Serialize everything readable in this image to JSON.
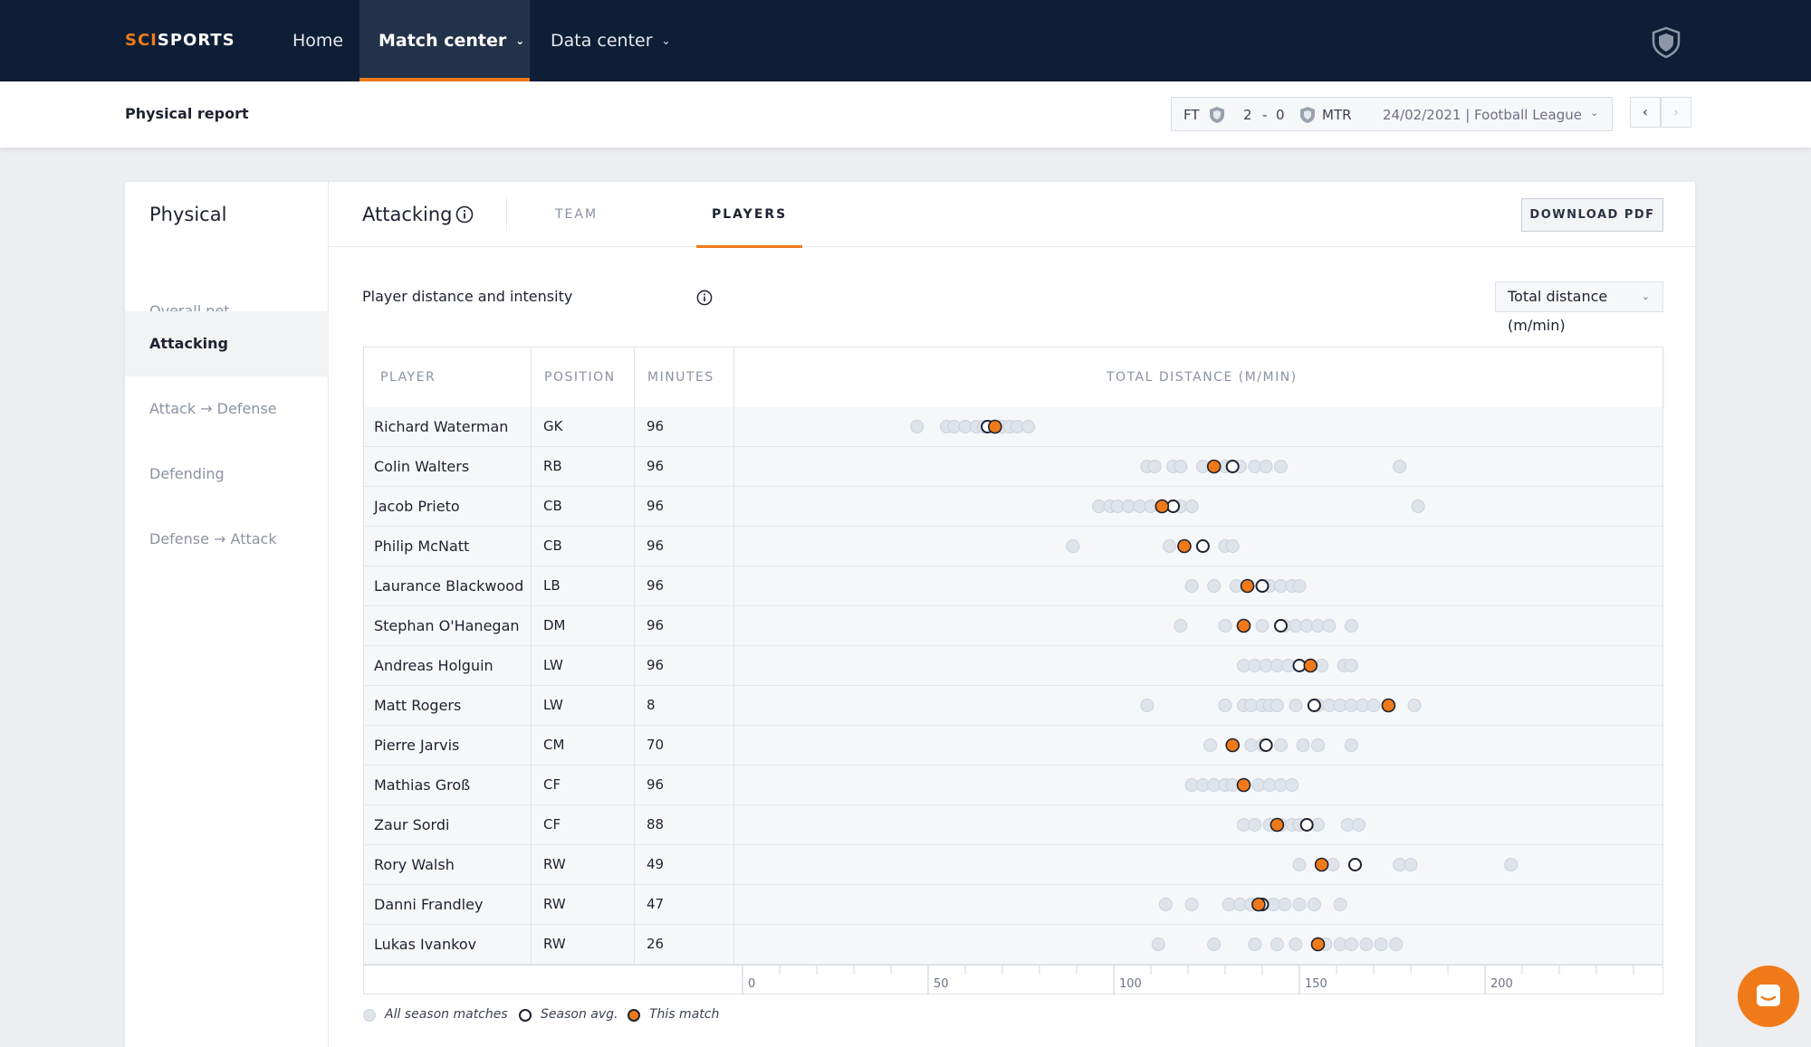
{
  "app": {
    "logo_a": "SCI",
    "logo_b": "SPORTS"
  },
  "nav": {
    "home": "Home",
    "match_center": "Match center",
    "data_center": "Data center"
  },
  "header": {
    "page_title": "Physical report",
    "match": {
      "status": "FT",
      "score_home": "2",
      "score_sep": "-",
      "score_away": "0",
      "away_team": "MTR",
      "meta": "24/02/2021 | Football League"
    }
  },
  "sidebar": {
    "title": "Physical",
    "items": [
      "Overall net",
      "Attacking",
      "Attack → Defense",
      "Defending",
      "Defense → Attack"
    ],
    "active_index": 1
  },
  "tabs": {
    "section_title": "Attacking",
    "team": "TEAM",
    "players": "PLAYERS",
    "download": "DOWNLOAD PDF"
  },
  "panel": {
    "subtitle": "Player distance and intensity",
    "metric": "Total distance (m/min)"
  },
  "table": {
    "headers": {
      "player": "PLAYER",
      "position": "POSITION",
      "minutes": "MINUTES",
      "chart": "TOTAL DISTANCE (M/MIN)"
    },
    "rows": [
      {
        "player": "Richard Waterman",
        "position": "GK",
        "minutes": "96"
      },
      {
        "player": "Colin Walters",
        "position": "RB",
        "minutes": "96"
      },
      {
        "player": "Jacob Prieto",
        "position": "CB",
        "minutes": "96"
      },
      {
        "player": "Philip McNatt",
        "position": "CB",
        "minutes": "96"
      },
      {
        "player": "Laurance Blackwood",
        "position": "LB",
        "minutes": "96"
      },
      {
        "player": "Stephan O'Hanegan",
        "position": "DM",
        "minutes": "96"
      },
      {
        "player": "Andreas Holguin",
        "position": "LW",
        "minutes": "96"
      },
      {
        "player": "Matt Rogers",
        "position": "LW",
        "minutes": "8"
      },
      {
        "player": "Pierre Jarvis",
        "position": "CM",
        "minutes": "70"
      },
      {
        "player": "Mathias Groß",
        "position": "CF",
        "minutes": "96"
      },
      {
        "player": "Zaur Sordi",
        "position": "CF",
        "minutes": "88"
      },
      {
        "player": "Rory Walsh",
        "position": "RW",
        "minutes": "49"
      },
      {
        "player": "Danni Frandley",
        "position": "RW",
        "minutes": "47"
      },
      {
        "player": "Lukas Ivankov",
        "position": "RW",
        "minutes": "26"
      }
    ]
  },
  "legend": {
    "all": "All season matches",
    "avg": "Season avg.",
    "match": "This match"
  },
  "colors": {
    "accent": "#f07a1a",
    "navy": "#0e1e36",
    "dot": "#dfe3ea"
  },
  "chart_data": {
    "type": "scatter",
    "ylabel": "TOTAL DISTANCE (M/MIN)",
    "xlim": [
      0,
      250
    ],
    "xticks": [
      0,
      50,
      100,
      150,
      200
    ],
    "tick_labels": [
      "0",
      "50",
      "100",
      "150",
      "200"
    ],
    "series": [
      {
        "player": "Richard Waterman",
        "season": [
          47,
          55,
          57,
          60,
          63,
          65,
          67,
          70,
          72,
          74,
          77
        ],
        "avg": 66,
        "match": 68
      },
      {
        "player": "Colin Walters",
        "season": [
          109,
          111,
          116,
          118,
          124,
          130,
          132,
          134,
          138,
          141,
          145,
          177
        ],
        "avg": 132,
        "match": 127
      },
      {
        "player": "Jacob Prieto",
        "season": [
          96,
          99,
          101,
          104,
          107,
          110,
          116,
          118,
          121,
          182
        ],
        "avg": 116,
        "match": 113
      },
      {
        "player": "Philip McNatt",
        "season": [
          89,
          115,
          124,
          130,
          132
        ],
        "avg": 124,
        "match": 119
      },
      {
        "player": "Laurance Blackwood",
        "season": [
          121,
          127,
          133,
          136,
          140,
          142,
          145,
          148,
          150
        ],
        "avg": 140,
        "match": 136
      },
      {
        "player": "Stephan O'Hanegan",
        "season": [
          118,
          130,
          140,
          146,
          149,
          152,
          155,
          158,
          164
        ],
        "avg": 145,
        "match": 135
      },
      {
        "player": "Andreas Holguin",
        "season": [
          135,
          138,
          141,
          144,
          147,
          150,
          156,
          162,
          164
        ],
        "avg": 150,
        "match": 153
      },
      {
        "player": "Matt Rogers",
        "season": [
          109,
          130,
          135,
          137,
          140,
          142,
          144,
          149,
          155,
          158,
          161,
          164,
          167,
          170,
          181
        ],
        "avg": 154,
        "match": 174
      },
      {
        "player": "Pierre Jarvis",
        "season": [
          126,
          132,
          137,
          140,
          145,
          151,
          155,
          164
        ],
        "avg": 141,
        "match": 132
      },
      {
        "player": "Mathias Groß",
        "season": [
          121,
          124,
          127,
          130,
          132,
          135,
          139,
          142,
          145,
          148
        ],
        "avg": 135,
        "match": 135
      },
      {
        "player": "Zaur Sordi",
        "season": [
          135,
          138,
          142,
          145,
          148,
          150,
          155,
          163,
          166
        ],
        "avg": 152,
        "match": 144
      },
      {
        "player": "Rory Walsh",
        "season": [
          150,
          159,
          177,
          180,
          207
        ],
        "avg": 165,
        "match": 156
      },
      {
        "player": "Danni Frandley",
        "season": [
          114,
          121,
          131,
          134,
          137,
          140,
          143,
          146,
          150,
          154,
          161
        ],
        "avg": 140,
        "match": 139
      },
      {
        "player": "Lukas Ivankov",
        "season": [
          112,
          127,
          138,
          144,
          149,
          155,
          157,
          161,
          164,
          168,
          172,
          176,
          176
        ],
        "avg": 155,
        "match": 155
      }
    ]
  }
}
